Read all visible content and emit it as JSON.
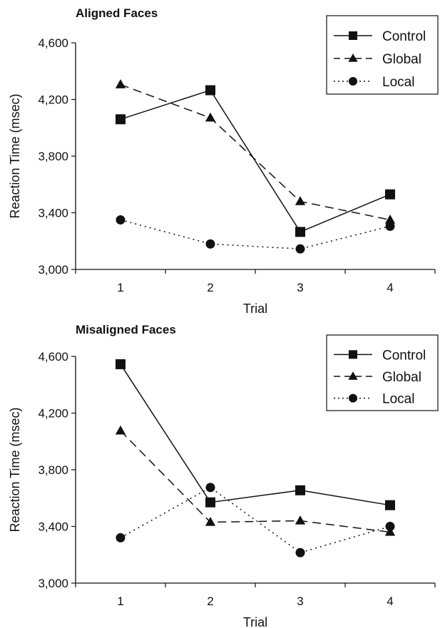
{
  "chart_data": [
    {
      "type": "line",
      "title": "Aligned Faces",
      "xlabel": "Trial",
      "ylabel": "Reaction Time (msec)",
      "x": [
        1,
        2,
        3,
        4
      ],
      "ylim": [
        3000,
        4600
      ],
      "yticks": [
        3000,
        3400,
        3800,
        4200,
        4600
      ],
      "ytick_labels": [
        "3,000",
        "3,400",
        "3,800",
        "4,200",
        "4,600"
      ],
      "xtick_labels": [
        "1",
        "2",
        "3",
        "4"
      ],
      "grid": false,
      "legend_position": "top-right",
      "series": [
        {
          "name": "Control",
          "marker": "square",
          "line": "solid",
          "values": [
            4060,
            4265,
            3265,
            3530
          ]
        },
        {
          "name": "Global",
          "marker": "triangle",
          "line": "dashed",
          "values": [
            4305,
            4070,
            3480,
            3350
          ]
        },
        {
          "name": "Local",
          "marker": "circle",
          "line": "dotted",
          "values": [
            3350,
            3180,
            3145,
            3305
          ]
        }
      ]
    },
    {
      "type": "line",
      "title": "Misaligned Faces",
      "xlabel": "Trial",
      "ylabel": "Reaction Time (msec)",
      "x": [
        1,
        2,
        3,
        4
      ],
      "ylim": [
        3000,
        4600
      ],
      "yticks": [
        3000,
        3400,
        3800,
        4200,
        4600
      ],
      "ytick_labels": [
        "3,000",
        "3,400",
        "3,800",
        "4,200",
        "4,600"
      ],
      "xtick_labels": [
        "1",
        "2",
        "3",
        "4"
      ],
      "grid": false,
      "legend_position": "top-right",
      "series": [
        {
          "name": "Control",
          "marker": "square",
          "line": "solid",
          "values": [
            4545,
            3570,
            3655,
            3550
          ]
        },
        {
          "name": "Global",
          "marker": "triangle",
          "line": "dashed",
          "values": [
            4075,
            3430,
            3440,
            3360
          ]
        },
        {
          "name": "Local",
          "marker": "circle",
          "line": "dotted",
          "values": [
            3320,
            3675,
            3215,
            3400
          ]
        }
      ]
    }
  ]
}
